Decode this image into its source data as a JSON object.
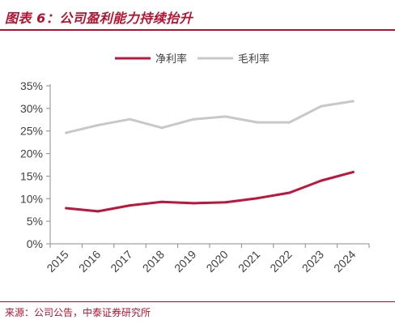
{
  "header": {
    "title": "图表 6：公司盈利能力持续抬升"
  },
  "footer": {
    "source": "来源：公司公告，中泰证券研究所"
  },
  "colors": {
    "accent": "#b5122f",
    "net_margin": "#c0143c",
    "gross_margin": "#c8c8c8",
    "axis": "#8c8c8c",
    "text": "#404040"
  },
  "chart_data": {
    "type": "line",
    "categories": [
      "2015",
      "2016",
      "2017",
      "2018",
      "2019",
      "2020",
      "2021",
      "2022",
      "2023",
      "2024"
    ],
    "series": [
      {
        "name": "净利率",
        "values": [
          7.9,
          7.2,
          8.5,
          9.3,
          9.0,
          9.2,
          10.1,
          11.3,
          14.0,
          15.9
        ]
      },
      {
        "name": "毛利率",
        "values": [
          24.6,
          26.3,
          27.6,
          25.7,
          27.6,
          28.2,
          26.9,
          26.9,
          30.5,
          31.6
        ]
      }
    ],
    "yticks": [
      "0%",
      "5%",
      "10%",
      "15%",
      "20%",
      "25%",
      "30%",
      "35%"
    ],
    "ylim": [
      0,
      35
    ],
    "legend": "top-center",
    "grid": false
  }
}
